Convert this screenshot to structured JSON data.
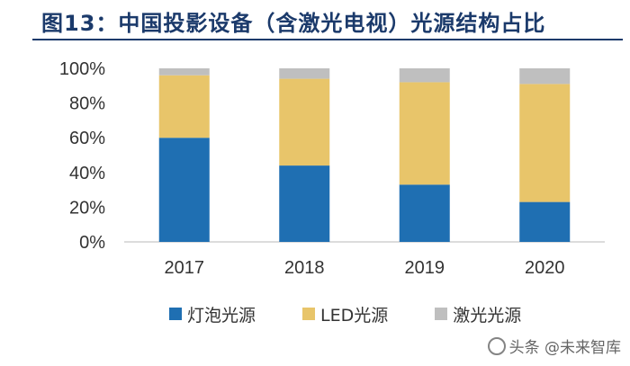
{
  "title": "图13：中国投影设备（含激光电视）光源结构占比",
  "chart_data": {
    "type": "bar",
    "stacked": true,
    "categories": [
      "2017",
      "2018",
      "2019",
      "2020"
    ],
    "series": [
      {
        "name": "灯泡光源",
        "color": "#1f6fb2",
        "values": [
          60,
          44,
          33,
          23
        ]
      },
      {
        "name": "LED光源",
        "color": "#e8c56a",
        "values": [
          36,
          50,
          59,
          68
        ]
      },
      {
        "name": "激光光源",
        "color": "#bfbfbf",
        "values": [
          4,
          6,
          8,
          9
        ]
      }
    ],
    "ylim": [
      0,
      100
    ],
    "yticks": [
      "0%",
      "20%",
      "40%",
      "60%",
      "80%",
      "100%"
    ],
    "grid": false,
    "legend": "bottom"
  },
  "watermark": "头条 @未来智库"
}
